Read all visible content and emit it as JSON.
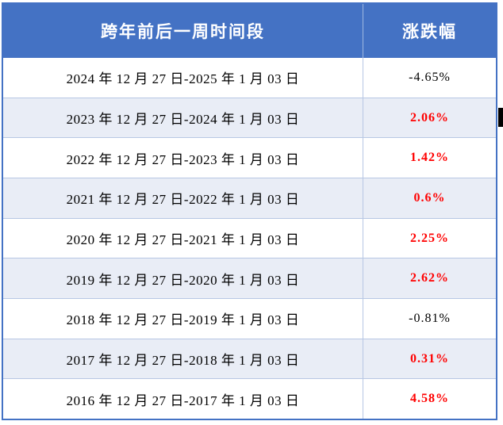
{
  "colors": {
    "header-bg": "#4472C4",
    "header-text": "#FFFFFF",
    "header-divider": "#9FB8E0",
    "band-row-bg": "#E9EDF6",
    "grid-line": "#B7C7E4",
    "outer-border": "#4472C4",
    "value-up-red": "#FF0000",
    "value-down-black": "#000000",
    "artifact-black": "#000000"
  },
  "chart_data": {
    "type": "table",
    "columns": [
      "跨年前后一周时间段",
      "涨跌幅"
    ],
    "rows": [
      {
        "period": "2024 年 12 月 27 日-2025 年 1 月 03 日",
        "change": "-4.65%",
        "value_pct": -4.65,
        "color": "black"
      },
      {
        "period": "2023 年 12 月 27 日-2024 年 1 月 03 日",
        "change": "2.06%",
        "value_pct": 2.06,
        "color": "red"
      },
      {
        "period": "2022 年 12 月 27 日-2023 年 1 月 03 日",
        "change": "1.42%",
        "value_pct": 1.42,
        "color": "red"
      },
      {
        "period": "2021 年 12 月 27 日-2022 年 1 月 03 日",
        "change": "0.6%",
        "value_pct": 0.6,
        "color": "red"
      },
      {
        "period": "2020 年 12 月 27 日-2021 年 1 月 03 日",
        "change": "2.25%",
        "value_pct": 2.25,
        "color": "red"
      },
      {
        "period": "2019 年 12 月 27 日-2020 年 1 月 03 日",
        "change": "2.62%",
        "value_pct": 2.62,
        "color": "red"
      },
      {
        "period": "2018 年 12 月 27 日-2019 年 1 月 03 日",
        "change": "-0.81%",
        "value_pct": -0.81,
        "color": "black"
      },
      {
        "period": "2017 年 12 月 27 日-2018 年 1 月 03 日",
        "change": "0.31%",
        "value_pct": 0.31,
        "color": "red"
      },
      {
        "period": "2016 年 12 月 27 日-2017 年 1 月 03 日",
        "change": "4.58%",
        "value_pct": 4.58,
        "color": "red"
      }
    ],
    "layout_hints": {
      "banded_rows": true,
      "red_means": "positive change (bold)",
      "black_means": "negative change (regular)"
    }
  }
}
